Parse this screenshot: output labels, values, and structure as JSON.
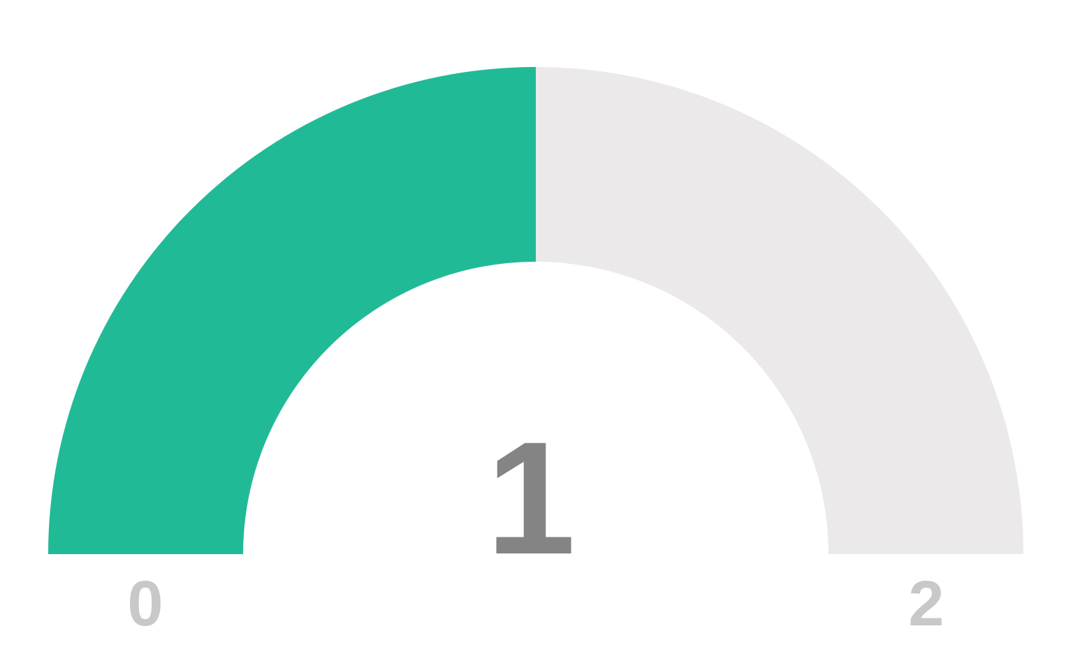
{
  "chart_data": {
    "type": "gauge",
    "min": 0,
    "max": 2,
    "value": 1,
    "value_label": "1",
    "min_label": "0",
    "max_label": "2",
    "colors": {
      "fill": "#21ba97",
      "track": "#ebe9ea",
      "value_text": "#848484",
      "tick_text": "#c8c8c8",
      "background": "#ffffff"
    }
  }
}
